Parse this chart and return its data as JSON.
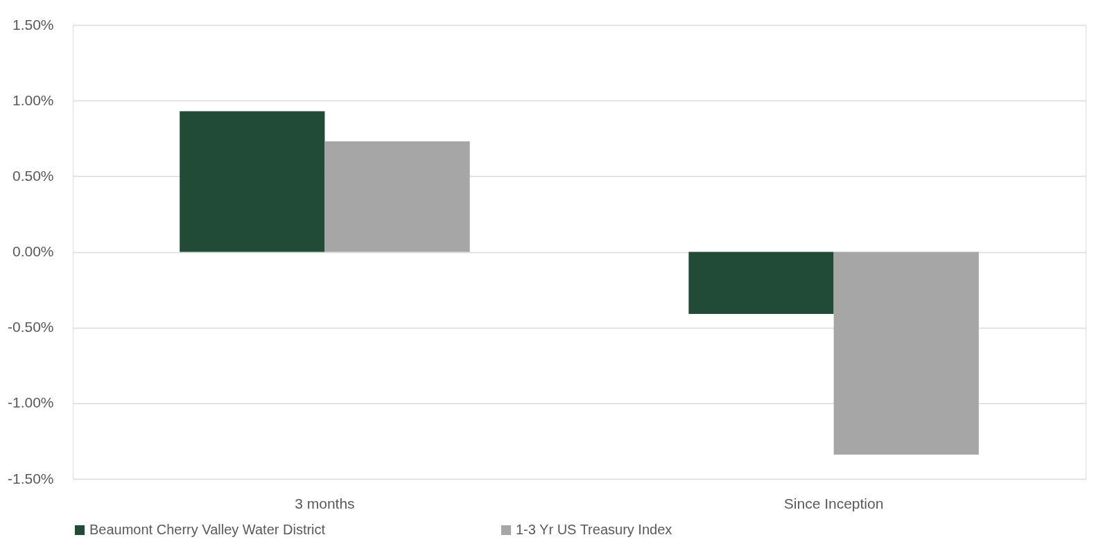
{
  "chart_data": {
    "type": "bar",
    "categories": [
      "3 months",
      "Since Inception"
    ],
    "series": [
      {
        "name": "Beaumont Cherry Valley Water District",
        "color": "#214b37",
        "values": [
          0.93,
          -0.41
        ]
      },
      {
        "name": "1-3 Yr US Treasury Index",
        "color": "#a6a6a6",
        "values": [
          0.73,
          -1.34
        ]
      }
    ],
    "ylim": [
      -1.5,
      1.5
    ],
    "yticks": [
      {
        "value": -1.5,
        "label": "-1.50%"
      },
      {
        "value": -1.0,
        "label": "-1.00%"
      },
      {
        "value": -0.5,
        "label": "-0.50%"
      },
      {
        "value": 0,
        "label": "0.00%"
      },
      {
        "value": 0.5,
        "label": "0.50%"
      },
      {
        "value": 1.0,
        "label": "1.00%"
      },
      {
        "value": 1.5,
        "label": "1.50%"
      }
    ],
    "grid": "y",
    "legend": "bottom"
  }
}
